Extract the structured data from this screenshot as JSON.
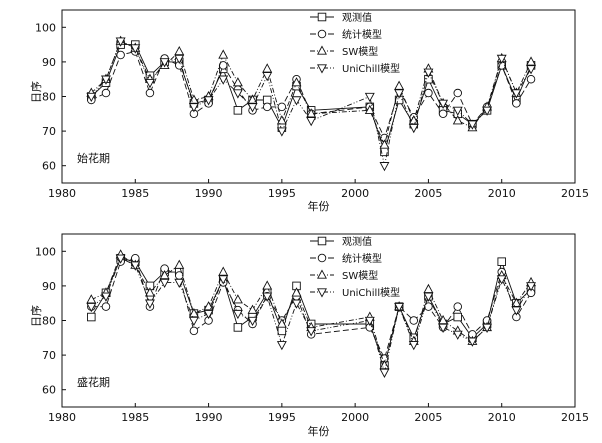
{
  "chart_data": [
    {
      "type": "line",
      "panel_label": "始花期",
      "xlabel": "年份",
      "ylabel": "日序",
      "xlim": [
        1980,
        2015
      ],
      "ylim": [
        55,
        105
      ],
      "xticks": [
        1980,
        1985,
        1990,
        1995,
        2000,
        2005,
        2010,
        2015
      ],
      "yticks": [
        60,
        70,
        80,
        90,
        100
      ],
      "grid": false,
      "legend_position": "top-center",
      "x": [
        1982,
        1983,
        1984,
        1985,
        1986,
        1987,
        1988,
        1989,
        1990,
        1991,
        1992,
        1993,
        1994,
        1995,
        1996,
        1997,
        2001,
        2002,
        2003,
        2004,
        2005,
        2006,
        2007,
        2008,
        2009,
        2010,
        2011,
        2012
      ],
      "series": [
        {
          "name": "观测值",
          "marker": "square",
          "dash": "solid",
          "values": [
            80,
            84,
            95,
            95,
            86,
            90,
            90,
            78,
            79,
            88,
            76,
            79,
            79,
            71,
            83,
            76,
            77,
            64,
            79,
            72,
            85,
            76,
            75,
            72,
            76,
            89,
            79,
            89
          ]
        },
        {
          "name": "统计模型",
          "marker": "circle",
          "dash": "dashed",
          "values": [
            79,
            81,
            92,
            93,
            81,
            91,
            89,
            75,
            78,
            89,
            82,
            76,
            77,
            77,
            85,
            75,
            77,
            68,
            82,
            74,
            81,
            75,
            81,
            72,
            77,
            89,
            78,
            85
          ]
        },
        {
          "name": "SW模型",
          "marker": "triangle-up",
          "dash": "dashdot",
          "values": [
            81,
            85,
            96,
            94,
            85,
            89,
            93,
            79,
            80,
            92,
            84,
            79,
            88,
            73,
            84,
            75,
            76,
            66,
            83,
            73,
            88,
            78,
            73,
            71,
            77,
            91,
            81,
            90
          ]
        },
        {
          "name": "UniChill模型",
          "marker": "triangle-down",
          "dash": "dashdotdot",
          "values": [
            80,
            85,
            96,
            94,
            84,
            90,
            91,
            77,
            79,
            85,
            81,
            77,
            86,
            70,
            79,
            73,
            80,
            60,
            81,
            71,
            87,
            78,
            76,
            72,
            76,
            91,
            81,
            88
          ]
        }
      ]
    },
    {
      "type": "line",
      "panel_label": "盛花期",
      "xlabel": "年份",
      "ylabel": "日序",
      "xlim": [
        1980,
        2015
      ],
      "ylim": [
        55,
        105
      ],
      "xticks": [
        1980,
        1985,
        1990,
        1995,
        2000,
        2005,
        2010,
        2015
      ],
      "yticks": [
        60,
        70,
        80,
        90,
        100
      ],
      "grid": false,
      "legend_position": "top-center",
      "x": [
        1982,
        1983,
        1984,
        1985,
        1986,
        1987,
        1988,
        1989,
        1990,
        1991,
        1992,
        1993,
        1994,
        1995,
        1996,
        1997,
        2001,
        2002,
        2003,
        2004,
        2005,
        2006,
        2007,
        2008,
        2009,
        2010,
        2011,
        2012
      ],
      "series": [
        {
          "name": "观测值",
          "marker": "square",
          "dash": "solid",
          "values": [
            81,
            88,
            98,
            97,
            90,
            94,
            94,
            82,
            83,
            92,
            78,
            81,
            88,
            77,
            90,
            79,
            79,
            67,
            84,
            75,
            87,
            79,
            81,
            75,
            79,
            97,
            85,
            89
          ]
        },
        {
          "name": "统计模型",
          "marker": "circle",
          "dash": "dashed",
          "values": [
            84,
            84,
            97,
            98,
            84,
            95,
            93,
            77,
            80,
            91,
            83,
            79,
            87,
            80,
            87,
            76,
            78,
            69,
            84,
            80,
            84,
            78,
            84,
            76,
            80,
            94,
            81,
            88
          ]
        },
        {
          "name": "SW模型",
          "marker": "triangle-up",
          "dash": "dashdot",
          "values": [
            86,
            88,
            99,
            96,
            88,
            93,
            96,
            82,
            84,
            94,
            86,
            83,
            90,
            79,
            88,
            78,
            81,
            67,
            84,
            74,
            89,
            80,
            77,
            74,
            78,
            93,
            85,
            91
          ]
        },
        {
          "name": "UniChill模型",
          "marker": "triangle-down",
          "dash": "dashdotdot",
          "values": [
            84,
            87,
            98,
            96,
            85,
            91,
            91,
            80,
            82,
            92,
            82,
            80,
            87,
            73,
            85,
            77,
            80,
            65,
            84,
            73,
            87,
            78,
            76,
            74,
            78,
            92,
            83,
            90
          ]
        }
      ]
    }
  ]
}
